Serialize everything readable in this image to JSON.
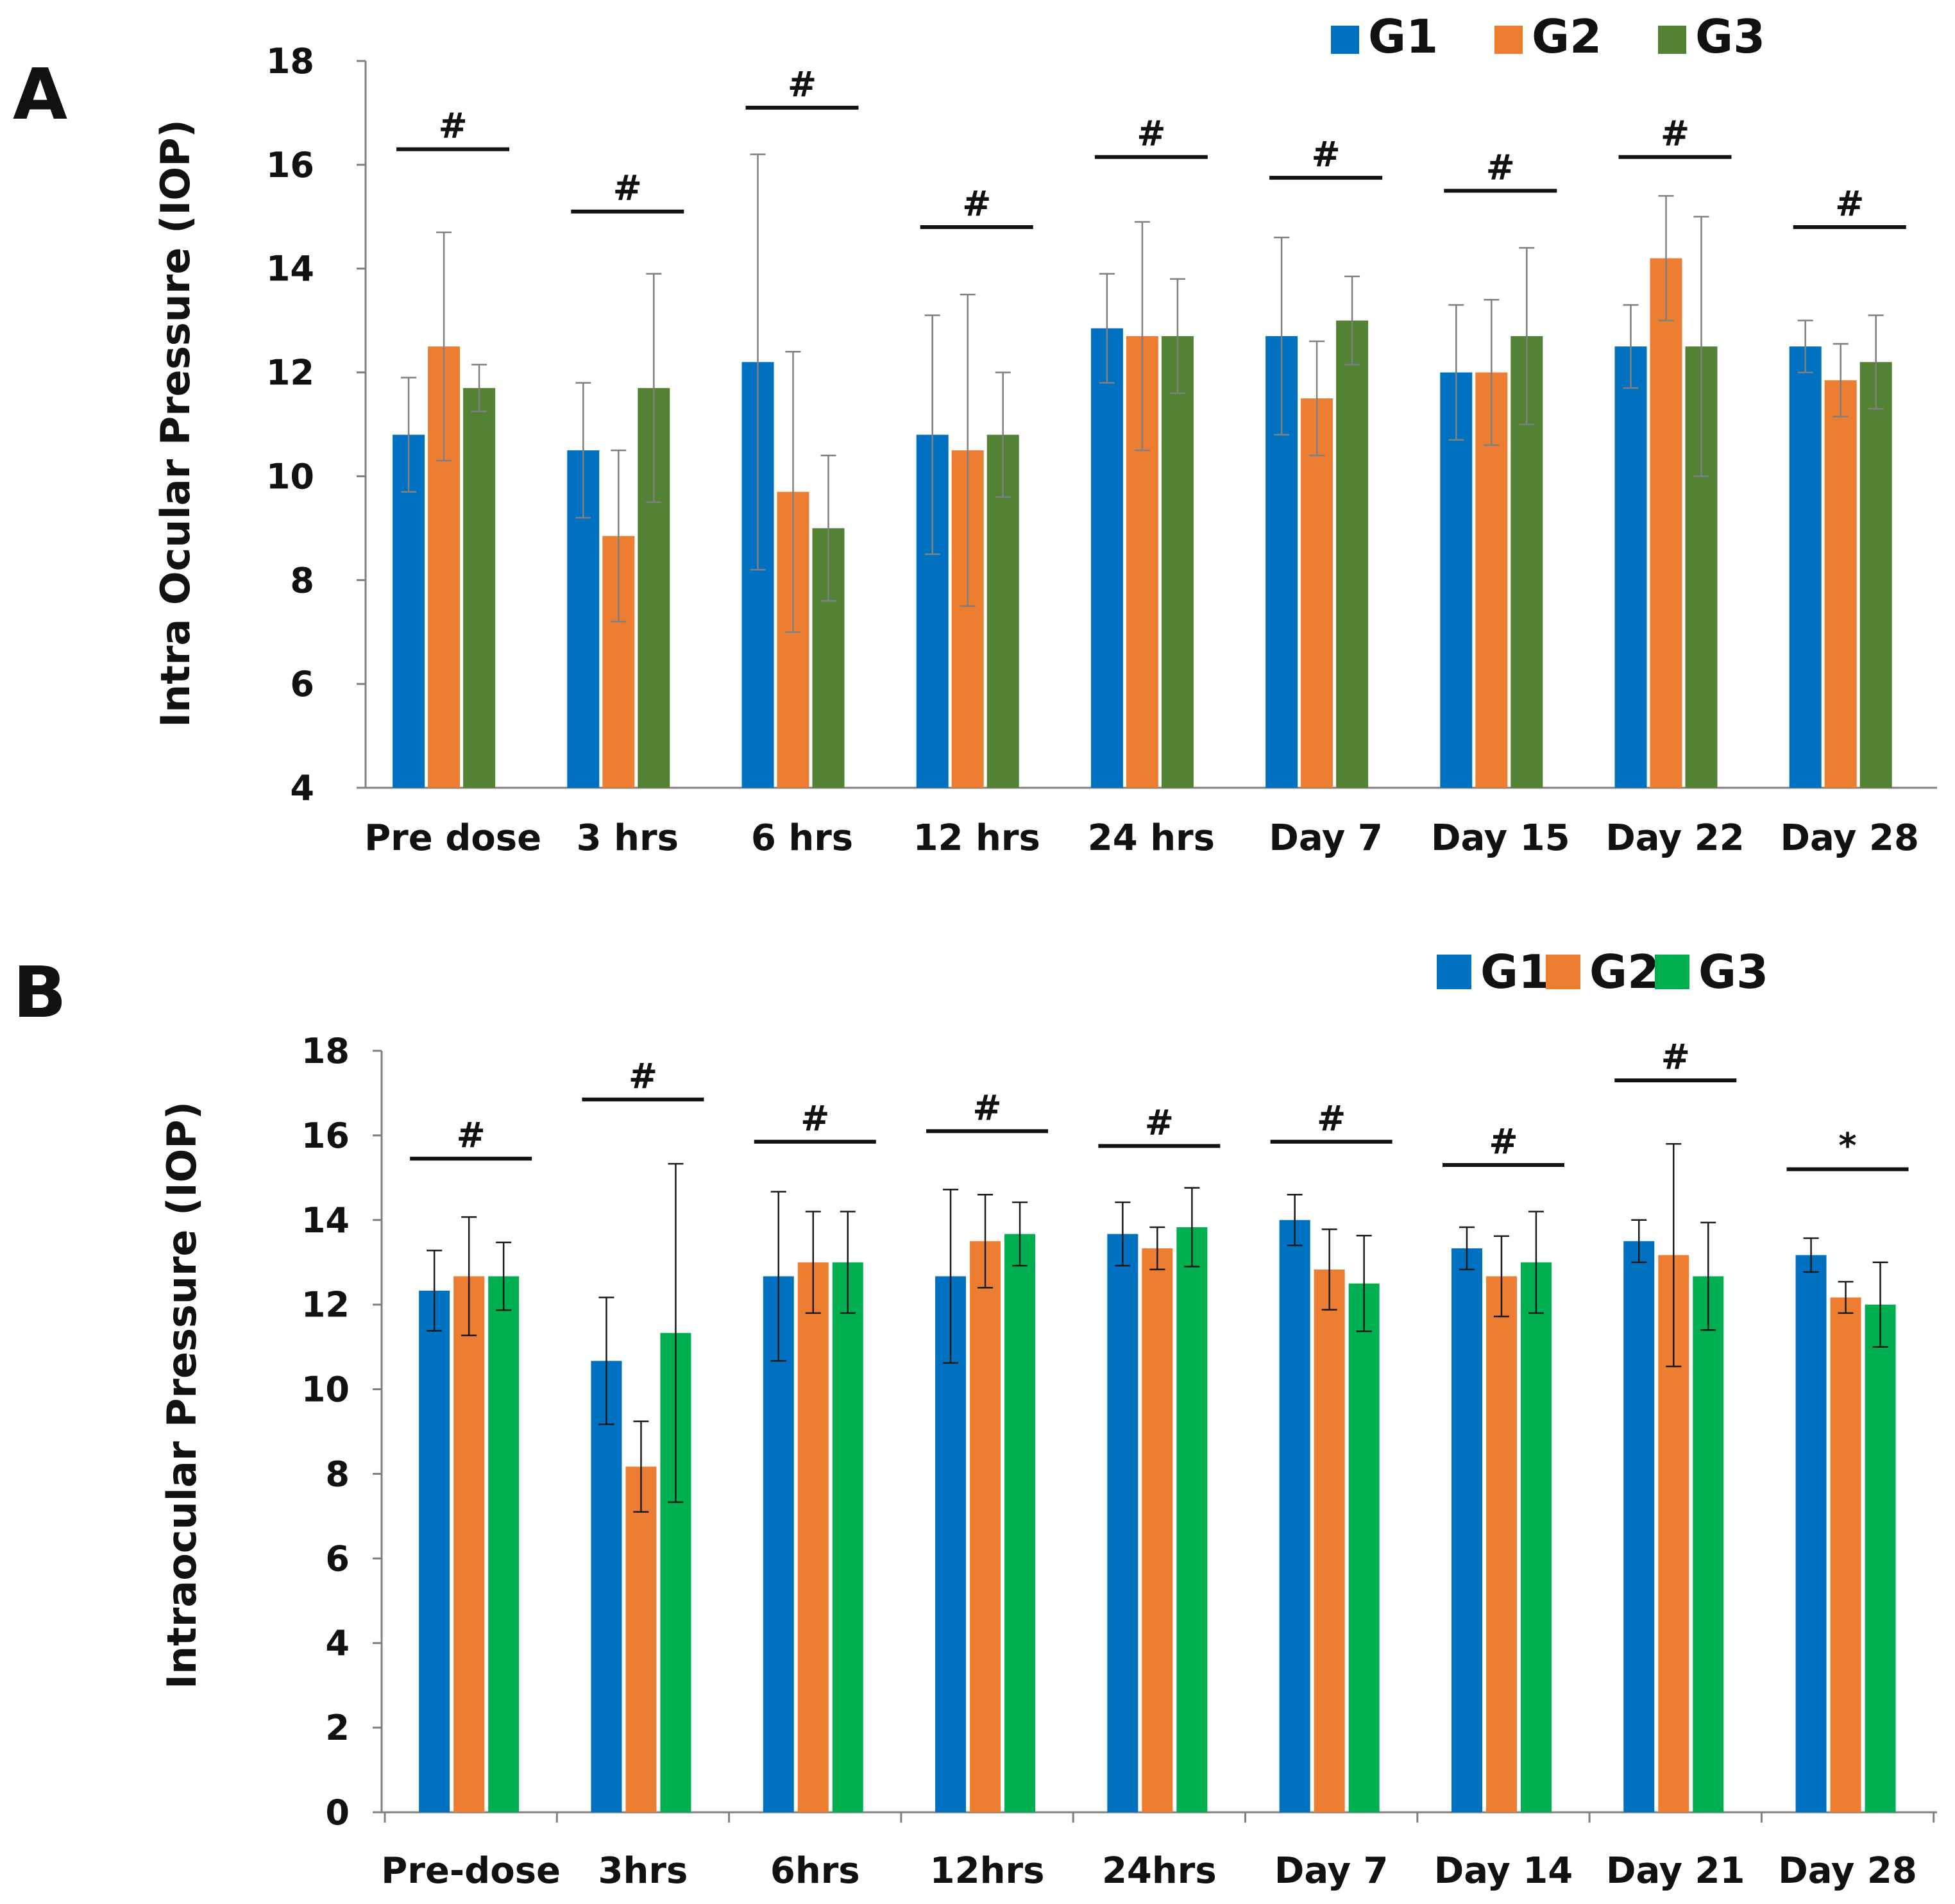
{
  "chart_data": [
    {
      "panel": "A",
      "type": "bar",
      "ylabel": "Intra Ocular Pressure (IOP)",
      "ylim": [
        4,
        18
      ],
      "yticks": [
        4,
        6,
        8,
        10,
        12,
        14,
        16,
        18
      ],
      "categories": [
        "Pre dose",
        "3 hrs",
        "6 hrs",
        "12 hrs",
        "24 hrs",
        "Day 7",
        "Day 15",
        "Day 22",
        "Day 28"
      ],
      "series": [
        {
          "name": "G1",
          "color": "#0070C0",
          "values": [
            10.8,
            10.5,
            12.2,
            10.8,
            12.85,
            12.7,
            12.0,
            12.5,
            12.5
          ],
          "errors": [
            1.1,
            1.3,
            4.0,
            2.3,
            1.05,
            1.9,
            1.3,
            0.8,
            0.5
          ]
        },
        {
          "name": "G2",
          "color": "#ED7D31",
          "values": [
            12.5,
            8.85,
            9.7,
            10.5,
            12.7,
            11.5,
            12.0,
            14.2,
            11.85
          ],
          "errors": [
            2.2,
            1.65,
            2.7,
            3.0,
            2.2,
            1.1,
            1.4,
            1.2,
            0.7
          ]
        },
        {
          "name": "G3",
          "color": "#548235",
          "values": [
            11.7,
            11.7,
            9.0,
            10.8,
            12.7,
            13.0,
            12.7,
            12.5,
            12.2
          ],
          "errors": [
            0.45,
            2.2,
            1.4,
            1.2,
            1.1,
            0.85,
            1.7,
            2.5,
            0.9
          ]
        }
      ],
      "annotations": [
        "#",
        "#",
        "#",
        "#",
        "#",
        "#",
        "#",
        "#",
        "#"
      ],
      "annotation_y": [
        16.3,
        15.1,
        17.1,
        14.8,
        16.15,
        15.75,
        15.5,
        16.15,
        14.8
      ],
      "legend_position": "top-right",
      "legend_labels": [
        "G1",
        "G2",
        "G3"
      ]
    },
    {
      "panel": "B",
      "type": "bar",
      "ylabel": "Intraocular Pressure (IOP)",
      "ylim": [
        0,
        18
      ],
      "yticks": [
        0,
        2,
        4,
        6,
        8,
        10,
        12,
        14,
        16,
        18
      ],
      "categories": [
        "Pre-dose",
        "3hrs",
        "6hrs",
        "12hrs",
        "24hrs",
        "Day 7",
        "Day 14",
        "Day 21",
        "Day 28"
      ],
      "series": [
        {
          "name": "G1",
          "color": "#0070C0",
          "values": [
            12.33,
            10.67,
            12.67,
            12.67,
            13.67,
            14.0,
            13.33,
            13.5,
            13.17
          ],
          "errors": [
            0.95,
            1.5,
            2.0,
            2.05,
            0.75,
            0.6,
            0.5,
            0.5,
            0.4
          ]
        },
        {
          "name": "G2",
          "color": "#ED7D31",
          "values": [
            12.67,
            8.17,
            13.0,
            13.5,
            13.33,
            12.83,
            12.67,
            13.17,
            12.17
          ],
          "errors": [
            1.4,
            1.07,
            1.2,
            1.1,
            0.5,
            0.95,
            0.95,
            2.63,
            0.37
          ]
        },
        {
          "name": "G3",
          "color": "#00B050",
          "values": [
            12.67,
            11.33,
            13.0,
            13.67,
            13.83,
            12.5,
            13.0,
            12.67,
            12.0
          ],
          "errors": [
            0.8,
            4.0,
            1.2,
            0.75,
            0.93,
            1.13,
            1.2,
            1.27,
            1.0
          ]
        }
      ],
      "annotations": [
        "#",
        "#",
        "#",
        "#",
        "#",
        "#",
        "#",
        "#",
        "*"
      ],
      "annotation_y": [
        15.45,
        16.85,
        15.85,
        16.1,
        15.75,
        15.85,
        15.3,
        17.3,
        15.2
      ],
      "legend_position": "top-right",
      "legend_labels": [
        "G1",
        "G2",
        "G3"
      ]
    }
  ]
}
